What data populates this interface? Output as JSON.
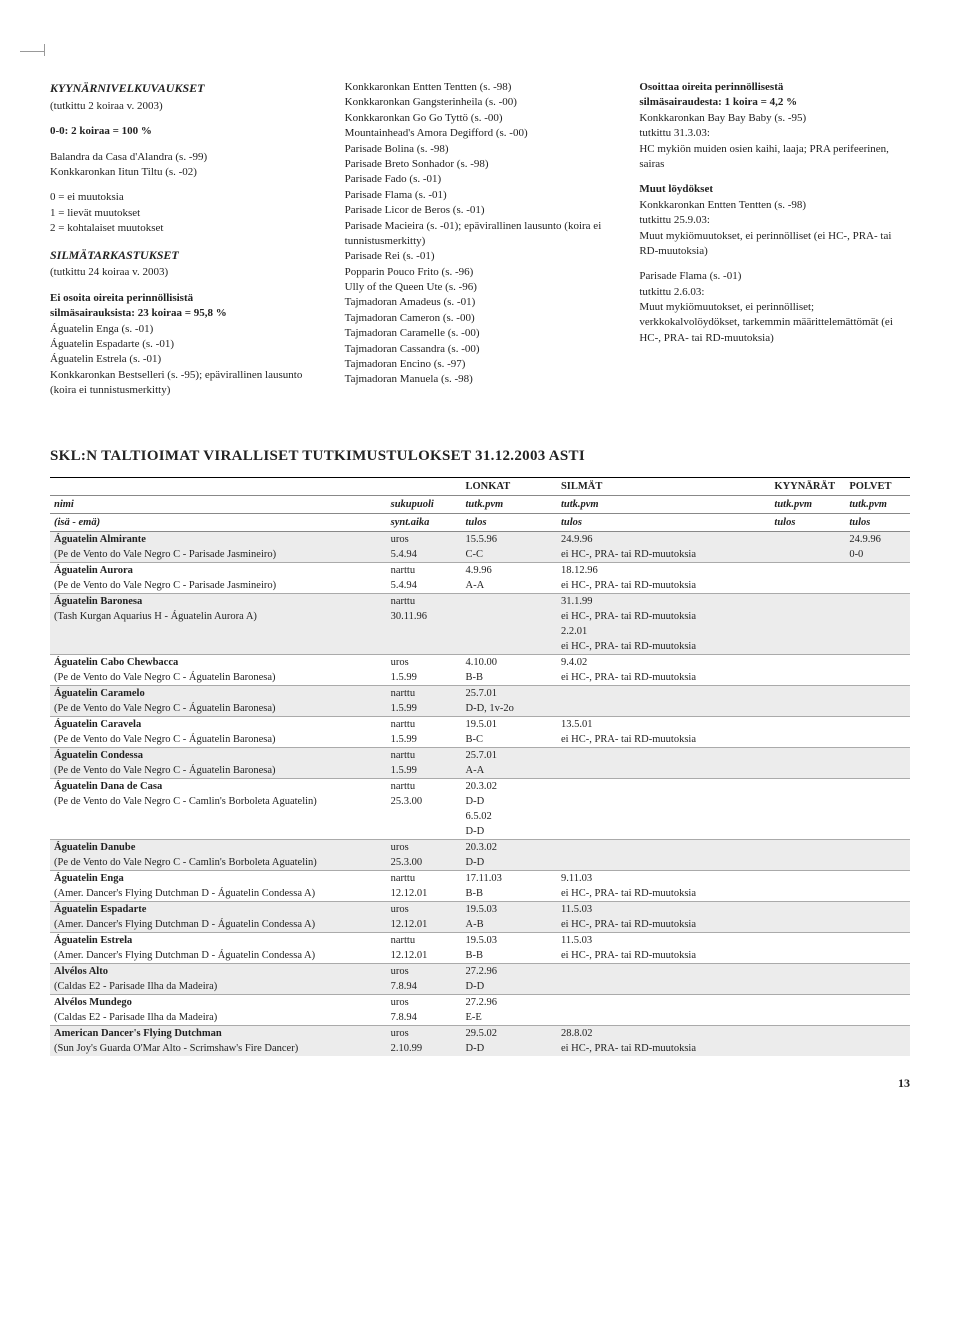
{
  "col1": {
    "h1": "KYYNÄRNIVELKUVAUKSET",
    "h1sub": "(tutkittu 2 koiraa v. 2003)",
    "scale_title": "0-0: 2 koiraa = 100 %",
    "dogs": [
      "Balandra da Casa d'Alandra (s. -99)",
      "Konkkaronkan Iitun Tiltu (s. -02)"
    ],
    "legend": [
      "0 = ei muutoksia",
      "1 = lievät muutokset",
      "2 = kohtalaiset muutokset"
    ],
    "h2": "SILMÄTARKASTUKSET",
    "h2sub": "(tutkittu 24 koiraa v. 2003)",
    "resultTitle1": "Ei osoita oireita perinnöllisistä",
    "resultTitle2": "silmäsairauksista: 23 koiraa = 95,8 %",
    "resultDogs": [
      "Águatelin Enga (s. -01)",
      "Águatelin Espadarte (s. -01)",
      "Águatelin Estrela (s. -01)",
      "Konkkaronkan Bestselleri (s. -95); epävirallinen lausunto (koira ei tunnistusmerkitty)"
    ]
  },
  "col2": {
    "items": [
      "Konkkaronkan Entten Tentten (s. -98)",
      "Konkkaronkan Gangsterinheila (s. -00)",
      "Konkkaronkan Go Go Tyttö (s. -00)",
      "Mountainhead's Amora Degifford (s. -00)",
      "Parisade Bolina (s. -98)",
      "Parisade Breto Sonhador (s. -98)",
      "Parisade Fado (s. -01)",
      "Parisade Flama (s. -01)",
      "Parisade Licor de Beros (s. -01)",
      "Parisade Macieira (s. -01); epävirallinen lausunto (koira ei tunnistusmerkitty)",
      "Parisade Rei (s. -01)",
      "Popparin Pouco Frito (s. -96)",
      "Ully of the Queen Ute (s. -96)",
      "Tajmadoran Amadeus (s. -01)",
      "Tajmadoran Cameron (s. -00)",
      "Tajmadoran Caramelle (s. -00)",
      "Tajmadoran Cassandra (s. -00)",
      "Tajmadoran Encino (s. -97)",
      "Tajmadoran Manuela (s. -98)"
    ]
  },
  "col3": {
    "h1a": "Osoittaa oireita perinnöllisestä",
    "h1b": "silmäsairaudesta: 1 koira = 4,2 %",
    "lines1": [
      "Konkkaronkan Bay Bay Baby (s. -95)",
      "tutkittu 31.3.03:",
      "HC mykiön muiden osien kaihi, laaja; PRA perifeerinen, sairas"
    ],
    "h2": "Muut löydökset",
    "lines2": [
      "Konkkaronkan Entten Tentten (s. -98)",
      "tutkittu 25.9.03:",
      "Muut mykiömuutokset, ei perinnölliset (ei HC-, PRA- tai RD-muutoksia)"
    ],
    "lines3": [
      "Parisade Flama (s. -01)",
      "tutkittu 2.6.03:",
      "Muut mykiömuutokset, ei perinnölliset; verkkokalvolöydökset, tarkemmin määrittelemättömät (ei HC-, PRA- tai RD-muutoksia)"
    ]
  },
  "sectionTitle": "SKL:N TALTIOIMAT VIRALLISET TUTKIMUSTULOKSET 31.12.2003 ASTI",
  "tableHeaders": {
    "lonkat": "LONKAT",
    "silmat": "SILMÄT",
    "kyyn": "KYYNÄRÄT",
    "polvet": "POLVET",
    "nimi": "nimi",
    "sukupuoli": "sukupuoli",
    "tutkpvm": "tutk.pvm",
    "isaema": "(isä - emä)",
    "syntaika": "synt.aika",
    "tulos": "tulos"
  },
  "rows": [
    {
      "shade": true,
      "name": "Águatelin Almirante",
      "sex": "uros",
      "lonkat": "15.5.96",
      "silmat": "24.9.96",
      "kyyn": "",
      "polvet": "24.9.96",
      "parents": "(Pe de Vento do Vale Negro C - Parisade Jasmineiro)",
      "synt": "5.4.94",
      "ltulos": "C-C",
      "stulos": "ei HC-, PRA- tai RD-muutoksia",
      "ktulos": "",
      "ptulos": "0-0"
    },
    {
      "shade": false,
      "name": "Águatelin Aurora",
      "sex": "narttu",
      "lonkat": "4.9.96",
      "silmat": "18.12.96",
      "kyyn": "",
      "polvet": "",
      "parents": "(Pe de Vento do Vale Negro C - Parisade Jasmineiro)",
      "synt": "5.4.94",
      "ltulos": "A-A",
      "stulos": "ei HC-, PRA- tai RD-muutoksia",
      "ktulos": "",
      "ptulos": ""
    },
    {
      "shade": true,
      "name": "Águatelin Baronesa",
      "sex": "narttu",
      "lonkat": "",
      "silmat": "31.1.99",
      "kyyn": "",
      "polvet": "",
      "parents": "(Tash Kurgan Aquarius H - Águatelin Aurora A)",
      "synt": "30.11.96",
      "ltulos": "",
      "stulos": "ei HC-, PRA- tai RD-muutoksia",
      "ktulos": "",
      "ptulos": "",
      "extra": [
        {
          "silmat": "2.2.01"
        },
        {
          "stulos": "ei HC-, PRA- tai RD-muutoksia"
        }
      ]
    },
    {
      "shade": false,
      "name": "Águatelin Cabo Chewbacca",
      "sex": "uros",
      "lonkat": "4.10.00",
      "silmat": "9.4.02",
      "kyyn": "",
      "polvet": "",
      "parents": "(Pe de Vento do Vale Negro C - Águatelin Baronesa)",
      "synt": "1.5.99",
      "ltulos": "B-B",
      "stulos": "ei HC-, PRA- tai RD-muutoksia",
      "ktulos": "",
      "ptulos": ""
    },
    {
      "shade": true,
      "name": "Águatelin Caramelo",
      "sex": "narttu",
      "lonkat": "25.7.01",
      "silmat": "",
      "kyyn": "",
      "polvet": "",
      "parents": "(Pe de Vento do Vale Negro C - Águatelin Baronesa)",
      "synt": "1.5.99",
      "ltulos": "D-D, 1v-2o",
      "stulos": "",
      "ktulos": "",
      "ptulos": ""
    },
    {
      "shade": false,
      "name": "Águatelin Caravela",
      "sex": "narttu",
      "lonkat": "19.5.01",
      "silmat": "13.5.01",
      "kyyn": "",
      "polvet": "",
      "parents": "(Pe de Vento do Vale Negro C - Águatelin Baronesa)",
      "synt": "1.5.99",
      "ltulos": "B-C",
      "stulos": "ei HC-, PRA- tai RD-muutoksia",
      "ktulos": "",
      "ptulos": ""
    },
    {
      "shade": true,
      "name": "Águatelin Condessa",
      "sex": "narttu",
      "lonkat": "25.7.01",
      "silmat": "",
      "kyyn": "",
      "polvet": "",
      "parents": "(Pe de Vento do Vale Negro C - Águatelin Baronesa)",
      "synt": "1.5.99",
      "ltulos": "A-A",
      "stulos": "",
      "ktulos": "",
      "ptulos": ""
    },
    {
      "shade": false,
      "name": "Águatelin Dana de Casa",
      "sex": "narttu",
      "lonkat": "20.3.02",
      "silmat": "",
      "kyyn": "",
      "polvet": "",
      "parents": "(Pe de Vento do Vale Negro C - Camlin's Borboleta Aguatelin)",
      "synt": "25.3.00",
      "ltulos": "D-D",
      "stulos": "",
      "ktulos": "",
      "ptulos": "",
      "extra": [
        {
          "lonkat": "6.5.02"
        },
        {
          "ltulos": "D-D"
        }
      ]
    },
    {
      "shade": true,
      "name": "Águatelin Danube",
      "sex": "uros",
      "lonkat": "20.3.02",
      "silmat": "",
      "kyyn": "",
      "polvet": "",
      "parents": "(Pe de Vento do Vale Negro C - Camlin's Borboleta Aguatelin)",
      "synt": "25.3.00",
      "ltulos": "D-D",
      "stulos": "",
      "ktulos": "",
      "ptulos": ""
    },
    {
      "shade": false,
      "name": "Águatelin Enga",
      "sex": "narttu",
      "lonkat": "17.11.03",
      "silmat": "9.11.03",
      "kyyn": "",
      "polvet": "",
      "parents": "(Amer. Dancer's Flying Dutchman D - Águatelin Condessa A)",
      "synt": "12.12.01",
      "ltulos": "B-B",
      "stulos": "ei HC-, PRA- tai RD-muutoksia",
      "ktulos": "",
      "ptulos": ""
    },
    {
      "shade": true,
      "name": "Águatelin Espadarte",
      "sex": "uros",
      "lonkat": "19.5.03",
      "silmat": "11.5.03",
      "kyyn": "",
      "polvet": "",
      "parents": "(Amer. Dancer's Flying Dutchman D - Águatelin Condessa A)",
      "synt": "12.12.01",
      "ltulos": "A-B",
      "stulos": "ei HC-, PRA- tai RD-muutoksia",
      "ktulos": "",
      "ptulos": ""
    },
    {
      "shade": false,
      "name": "Águatelin Estrela",
      "sex": "narttu",
      "lonkat": "19.5.03",
      "silmat": "11.5.03",
      "kyyn": "",
      "polvet": "",
      "parents": "(Amer. Dancer's Flying Dutchman D - Águatelin Condessa A)",
      "synt": "12.12.01",
      "ltulos": "B-B",
      "stulos": "ei HC-, PRA- tai RD-muutoksia",
      "ktulos": "",
      "ptulos": ""
    },
    {
      "shade": true,
      "name": "Alvélos Alto",
      "sex": "uros",
      "lonkat": "27.2.96",
      "silmat": "",
      "kyyn": "",
      "polvet": "",
      "parents": "(Caldas E2 - Parisade Ilha da Madeira)",
      "synt": "7.8.94",
      "ltulos": "D-D",
      "stulos": "",
      "ktulos": "",
      "ptulos": ""
    },
    {
      "shade": false,
      "name": "Alvélos Mundego",
      "sex": "uros",
      "lonkat": "27.2.96",
      "silmat": "",
      "kyyn": "",
      "polvet": "",
      "parents": "(Caldas E2 - Parisade Ilha da Madeira)",
      "synt": "7.8.94",
      "ltulos": "E-E",
      "stulos": "",
      "ktulos": "",
      "ptulos": ""
    },
    {
      "shade": true,
      "name": "American Dancer's Flying Dutchman",
      "sex": "uros",
      "lonkat": "29.5.02",
      "silmat": "28.8.02",
      "kyyn": "",
      "polvet": "",
      "parents": "(Sun Joy's Guarda O'Mar Alto - Scrimshaw's Fire Dancer)",
      "synt": "2.10.99",
      "ltulos": "D-D",
      "stulos": "ei HC-, PRA- tai RD-muutoksia",
      "ktulos": "",
      "ptulos": ""
    }
  ],
  "pageNum": "13"
}
